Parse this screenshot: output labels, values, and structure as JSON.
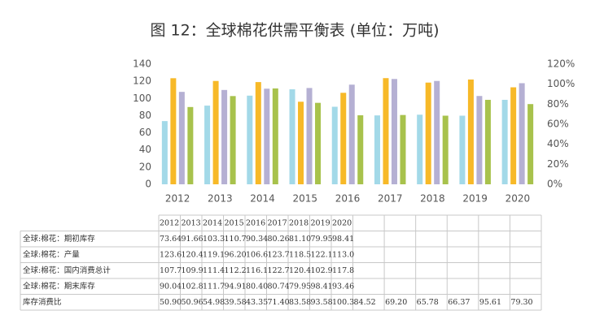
{
  "chart_data": {
    "type": "bar",
    "title": "图 12：全球棉花供需平衡表 (单位：万吨)",
    "categories": [
      "2012",
      "2013",
      "2014",
      "2015",
      "2016",
      "2017",
      "2018",
      "2019",
      "2020"
    ],
    "series": [
      {
        "name": "全球:棉花：期初库存",
        "color": "#a3d9e8",
        "values": [
          73.64,
          91.66,
          103.3,
          110.7,
          90.34,
          80.26,
          81.1,
          79.95,
          98.41
        ],
        "value_labels": [
          "73.64",
          "91.66",
          "103.3",
          "110.7",
          "90.34",
          "80.26",
          "81.10",
          "79.95",
          "98.41"
        ]
      },
      {
        "name": "全球:棉花：产量",
        "color": "#f7b928",
        "values": [
          123.6,
          120.4,
          119.1,
          96.2,
          106.6,
          123.7,
          118.5,
          122.1,
          113.0
        ],
        "value_labels": [
          "123.6",
          "120.4",
          "119.1",
          "96.20",
          "106.6",
          "123.7",
          "118.5",
          "122.1",
          "113.0"
        ]
      },
      {
        "name": "全球:棉花：国内消费总计",
        "color": "#b5b0d3",
        "values": [
          107.7,
          109.9,
          111.4,
          112.2,
          116.1,
          122.7,
          120.4,
          102.9,
          117.8
        ],
        "value_labels": [
          "107.7",
          "109.9",
          "111.4",
          "112.2",
          "116.1",
          "122.7",
          "120.4",
          "102.9",
          "117.8"
        ]
      },
      {
        "name": "全球:棉花：期末库存",
        "color": "#a8c24c",
        "values": [
          90.04,
          102.8,
          111.7,
          94.91,
          80.4,
          80.74,
          79.95,
          98.41,
          93.46
        ],
        "value_labels": [
          "90.04",
          "102.8",
          "111.7",
          "94.91",
          "80.40",
          "80.74",
          "79.95",
          "98.41",
          "93.46"
        ]
      }
    ],
    "ylim": [
      0,
      140
    ],
    "yticks": [
      0,
      20,
      40,
      60,
      80,
      100,
      120,
      140
    ],
    "y2lim": [
      0,
      120
    ],
    "y2ticks": [
      {
        "value": 0,
        "label": "0%"
      },
      {
        "value": 20,
        "label": "20%"
      },
      {
        "value": 40,
        "label": "40%"
      },
      {
        "value": 60,
        "label": "60%"
      },
      {
        "value": 80,
        "label": "80%"
      },
      {
        "value": 100,
        "label": "100%"
      },
      {
        "value": 120,
        "label": "120%"
      }
    ],
    "grid": false
  },
  "table": {
    "ratio_name": "库存消费比",
    "ratio_values": [
      "50.90",
      "50.96",
      "54.98",
      "39.58",
      "43.35",
      "71.40",
      "83.58",
      "93.58",
      "100.3",
      "84.52",
      "69.20",
      "65.78",
      "66.37",
      "95.61",
      "79.30"
    ]
  }
}
